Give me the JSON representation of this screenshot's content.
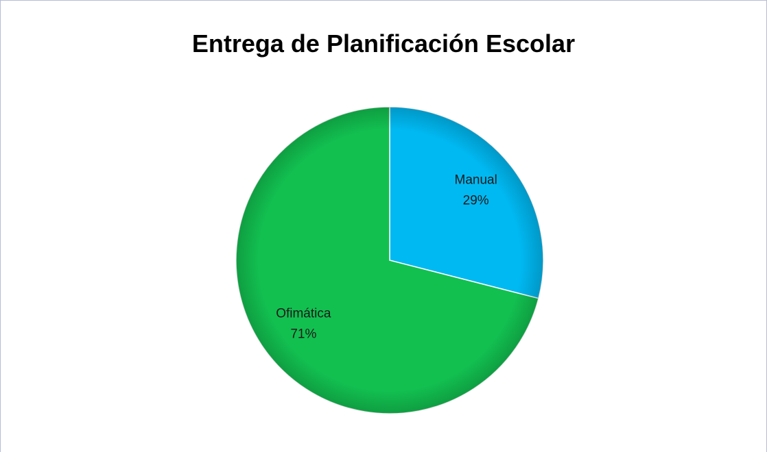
{
  "chart_data": {
    "type": "pie",
    "title": "Entrega de Planificación Escolar",
    "categories": [
      "Manual",
      "Ofimática"
    ],
    "values": [
      29,
      71
    ],
    "value_labels": [
      "29%",
      "71%"
    ],
    "colors": [
      "#00b9f2",
      "#12c050"
    ]
  }
}
